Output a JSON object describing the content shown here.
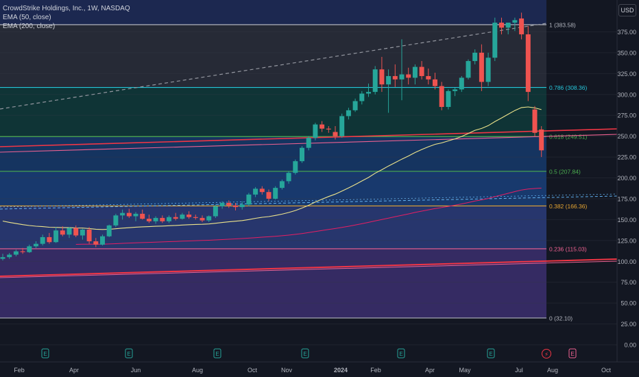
{
  "header": {
    "title": "CrowdStrike Holdings, Inc., 1W, NASDAQ",
    "indicators": [
      "EMA (50, close)",
      "EMA (200, close)"
    ],
    "currency": "USD"
  },
  "chart_data": {
    "type": "candlestick",
    "ylim": [
      0,
      400
    ],
    "y_ticks": [
      0,
      25,
      50,
      75,
      100,
      125,
      150,
      175,
      200,
      225,
      250,
      275,
      300,
      325,
      350,
      375
    ],
    "x_labels": [
      "Feb",
      "Apr",
      "Jun",
      "Aug",
      "Oct",
      "Nov",
      "2024",
      "Feb",
      "Apr",
      "May",
      "Jul",
      "Aug",
      "Oct"
    ],
    "fib_levels": [
      {
        "ratio": 1,
        "price": 383.58,
        "label": "1 (383.58)",
        "color": "#b2b5be"
      },
      {
        "ratio": 0.786,
        "price": 308.36,
        "label": "0.786 (308.36)",
        "color": "#26c6da"
      },
      {
        "ratio": 0.618,
        "price": 249.51,
        "label": "0.618 (249.51)",
        "color": "#4caf50"
      },
      {
        "ratio": 0.5,
        "price": 207.84,
        "label": "0.5 (207.84)",
        "color": "#4caf50"
      },
      {
        "ratio": 0.382,
        "price": 166.36,
        "label": "0.382 (166.36)",
        "color": "#e6a532"
      },
      {
        "ratio": 0.236,
        "price": 115.03,
        "label": "0.236 (115.03)",
        "color": "#f06292"
      },
      {
        "ratio": 0,
        "price": 32.1,
        "label": "0 (32.10)",
        "color": "#b2b5be"
      }
    ],
    "candles": [
      {
        "t": 0,
        "o": 103,
        "h": 109,
        "l": 101,
        "c": 105
      },
      {
        "t": 1,
        "o": 105,
        "h": 110,
        "l": 103,
        "c": 108
      },
      {
        "t": 2,
        "o": 108,
        "h": 114,
        "l": 106,
        "c": 112
      },
      {
        "t": 3,
        "o": 112,
        "h": 116,
        "l": 109,
        "c": 111
      },
      {
        "t": 4,
        "o": 111,
        "h": 120,
        "l": 110,
        "c": 118
      },
      {
        "t": 5,
        "o": 118,
        "h": 124,
        "l": 116,
        "c": 121
      },
      {
        "t": 6,
        "o": 121,
        "h": 132,
        "l": 119,
        "c": 129
      },
      {
        "t": 7,
        "o": 129,
        "h": 134,
        "l": 121,
        "c": 123
      },
      {
        "t": 8,
        "o": 123,
        "h": 141,
        "l": 122,
        "c": 137
      },
      {
        "t": 9,
        "o": 137,
        "h": 142,
        "l": 130,
        "c": 132
      },
      {
        "t": 10,
        "o": 132,
        "h": 141,
        "l": 128,
        "c": 140
      },
      {
        "t": 11,
        "o": 140,
        "h": 143,
        "l": 129,
        "c": 131
      },
      {
        "t": 12,
        "o": 131,
        "h": 139,
        "l": 126,
        "c": 138
      },
      {
        "t": 13,
        "o": 138,
        "h": 141,
        "l": 121,
        "c": 124
      },
      {
        "t": 14,
        "o": 124,
        "h": 128,
        "l": 117,
        "c": 120
      },
      {
        "t": 15,
        "o": 120,
        "h": 132,
        "l": 119,
        "c": 130
      },
      {
        "t": 16,
        "o": 130,
        "h": 144,
        "l": 129,
        "c": 143
      },
      {
        "t": 17,
        "o": 143,
        "h": 157,
        "l": 141,
        "c": 155
      },
      {
        "t": 18,
        "o": 155,
        "h": 162,
        "l": 150,
        "c": 158
      },
      {
        "t": 19,
        "o": 158,
        "h": 163,
        "l": 152,
        "c": 154
      },
      {
        "t": 20,
        "o": 154,
        "h": 159,
        "l": 148,
        "c": 157
      },
      {
        "t": 21,
        "o": 157,
        "h": 162,
        "l": 150,
        "c": 151
      },
      {
        "t": 22,
        "o": 151,
        "h": 156,
        "l": 146,
        "c": 148
      },
      {
        "t": 23,
        "o": 148,
        "h": 154,
        "l": 145,
        "c": 152
      },
      {
        "t": 24,
        "o": 152,
        "h": 155,
        "l": 146,
        "c": 148
      },
      {
        "t": 25,
        "o": 148,
        "h": 155,
        "l": 146,
        "c": 153
      },
      {
        "t": 26,
        "o": 153,
        "h": 158,
        "l": 149,
        "c": 151
      },
      {
        "t": 27,
        "o": 151,
        "h": 158,
        "l": 150,
        "c": 156
      },
      {
        "t": 28,
        "o": 156,
        "h": 160,
        "l": 151,
        "c": 153
      },
      {
        "t": 29,
        "o": 153,
        "h": 156,
        "l": 150,
        "c": 152
      },
      {
        "t": 30,
        "o": 152,
        "h": 155,
        "l": 147,
        "c": 149
      },
      {
        "t": 31,
        "o": 149,
        "h": 155,
        "l": 147,
        "c": 154
      },
      {
        "t": 32,
        "o": 154,
        "h": 168,
        "l": 152,
        "c": 166
      },
      {
        "t": 33,
        "o": 166,
        "h": 172,
        "l": 163,
        "c": 170
      },
      {
        "t": 34,
        "o": 170,
        "h": 173,
        "l": 164,
        "c": 167
      },
      {
        "t": 35,
        "o": 167,
        "h": 170,
        "l": 161,
        "c": 165
      },
      {
        "t": 36,
        "o": 165,
        "h": 172,
        "l": 162,
        "c": 168
      },
      {
        "t": 37,
        "o": 168,
        "h": 182,
        "l": 166,
        "c": 180
      },
      {
        "t": 38,
        "o": 180,
        "h": 189,
        "l": 177,
        "c": 187
      },
      {
        "t": 39,
        "o": 187,
        "h": 190,
        "l": 180,
        "c": 183
      },
      {
        "t": 40,
        "o": 183,
        "h": 186,
        "l": 172,
        "c": 175
      },
      {
        "t": 41,
        "o": 175,
        "h": 190,
        "l": 174,
        "c": 188
      },
      {
        "t": 42,
        "o": 188,
        "h": 198,
        "l": 186,
        "c": 196
      },
      {
        "t": 43,
        "o": 196,
        "h": 208,
        "l": 193,
        "c": 206
      },
      {
        "t": 44,
        "o": 206,
        "h": 222,
        "l": 204,
        "c": 220
      },
      {
        "t": 45,
        "o": 220,
        "h": 238,
        "l": 218,
        "c": 236
      },
      {
        "t": 46,
        "o": 236,
        "h": 250,
        "l": 233,
        "c": 248
      },
      {
        "t": 47,
        "o": 248,
        "h": 266,
        "l": 245,
        "c": 264
      },
      {
        "t": 48,
        "o": 264,
        "h": 268,
        "l": 255,
        "c": 259
      },
      {
        "t": 49,
        "o": 259,
        "h": 262,
        "l": 254,
        "c": 258
      },
      {
        "t": 50,
        "o": 255,
        "h": 262,
        "l": 246,
        "c": 250
      },
      {
        "t": 51,
        "o": 250,
        "h": 277,
        "l": 248,
        "c": 274
      },
      {
        "t": 52,
        "o": 274,
        "h": 284,
        "l": 270,
        "c": 281
      },
      {
        "t": 53,
        "o": 281,
        "h": 295,
        "l": 279,
        "c": 292
      },
      {
        "t": 54,
        "o": 292,
        "h": 304,
        "l": 288,
        "c": 301
      },
      {
        "t": 55,
        "o": 301,
        "h": 313,
        "l": 297,
        "c": 303
      },
      {
        "t": 56,
        "o": 303,
        "h": 334,
        "l": 300,
        "c": 330
      },
      {
        "t": 57,
        "o": 330,
        "h": 345,
        "l": 303,
        "c": 312
      },
      {
        "t": 58,
        "o": 312,
        "h": 330,
        "l": 278,
        "c": 322
      },
      {
        "t": 59,
        "o": 322,
        "h": 336,
        "l": 309,
        "c": 318
      },
      {
        "t": 60,
        "o": 318,
        "h": 366,
        "l": 293,
        "c": 324
      },
      {
        "t": 61,
        "o": 324,
        "h": 332,
        "l": 312,
        "c": 320
      },
      {
        "t": 62,
        "o": 320,
        "h": 336,
        "l": 312,
        "c": 333
      },
      {
        "t": 63,
        "o": 333,
        "h": 340,
        "l": 318,
        "c": 322
      },
      {
        "t": 64,
        "o": 322,
        "h": 331,
        "l": 312,
        "c": 318
      },
      {
        "t": 65,
        "o": 318,
        "h": 326,
        "l": 306,
        "c": 310
      },
      {
        "t": 66,
        "o": 310,
        "h": 315,
        "l": 281,
        "c": 285
      },
      {
        "t": 67,
        "o": 285,
        "h": 306,
        "l": 282,
        "c": 304
      },
      {
        "t": 68,
        "o": 304,
        "h": 308,
        "l": 298,
        "c": 306
      },
      {
        "t": 69,
        "o": 306,
        "h": 322,
        "l": 303,
        "c": 320
      },
      {
        "t": 70,
        "o": 320,
        "h": 342,
        "l": 318,
        "c": 340
      },
      {
        "t": 71,
        "o": 340,
        "h": 354,
        "l": 336,
        "c": 350
      },
      {
        "t": 72,
        "o": 350,
        "h": 360,
        "l": 304,
        "c": 315
      },
      {
        "t": 73,
        "o": 315,
        "h": 350,
        "l": 310,
        "c": 344
      },
      {
        "t": 74,
        "o": 344,
        "h": 392,
        "l": 340,
        "c": 386
      },
      {
        "t": 75,
        "o": 386,
        "h": 392,
        "l": 372,
        "c": 380
      },
      {
        "t": 76,
        "o": 380,
        "h": 385,
        "l": 372,
        "c": 386
      },
      {
        "t": 77,
        "o": 386,
        "h": 392,
        "l": 376,
        "c": 389
      },
      {
        "t": 78,
        "o": 391,
        "h": 398,
        "l": 366,
        "c": 372
      },
      {
        "t": 79,
        "o": 372,
        "h": 382,
        "l": 292,
        "c": 303
      },
      {
        "t": 80,
        "o": 282,
        "h": 286,
        "l": 250,
        "c": 254
      },
      {
        "t": 81,
        "o": 258,
        "h": 262,
        "l": 225,
        "c": 233
      }
    ]
  }
}
